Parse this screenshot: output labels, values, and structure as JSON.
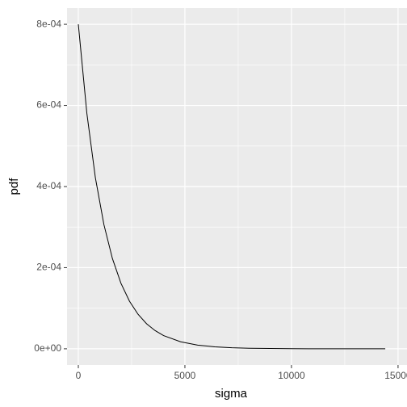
{
  "chart_data": {
    "type": "line",
    "x_label": "sigma",
    "y_label": "pdf",
    "x": [
      0,
      400,
      800,
      1200,
      1600,
      2000,
      2400,
      2800,
      3200,
      3600,
      4000,
      4800,
      5600,
      6400,
      7200,
      8000,
      10000,
      12000,
      14400
    ],
    "values": [
      0.0008,
      0.0005809,
      0.0004218,
      0.0003063,
      0.0002224,
      0.0001615,
      0.0001173,
      8.52e-05,
      6.18e-05,
      4.49e-05,
      3.26e-05,
      1.72e-05,
      9.07e-06,
      4.78e-06,
      2.52e-06,
      1.33e-06,
      2.7e-07,
      5.4e-08,
      8e-09
    ],
    "color": "#000000",
    "xlim": [
      -530,
      15420
    ],
    "xticks": [
      0,
      5000,
      10000,
      15000
    ],
    "ylim": [
      -4e-05,
      0.00084
    ],
    "yticks": [
      {
        "value": 0,
        "label": "0e+00"
      },
      {
        "value": 0.0002,
        "label": "2e-04"
      },
      {
        "value": 0.0004,
        "label": "4e-04"
      },
      {
        "value": 0.0006,
        "label": "6e-04"
      },
      {
        "value": 0.0008,
        "label": "8e-04"
      }
    ],
    "grid": true
  }
}
